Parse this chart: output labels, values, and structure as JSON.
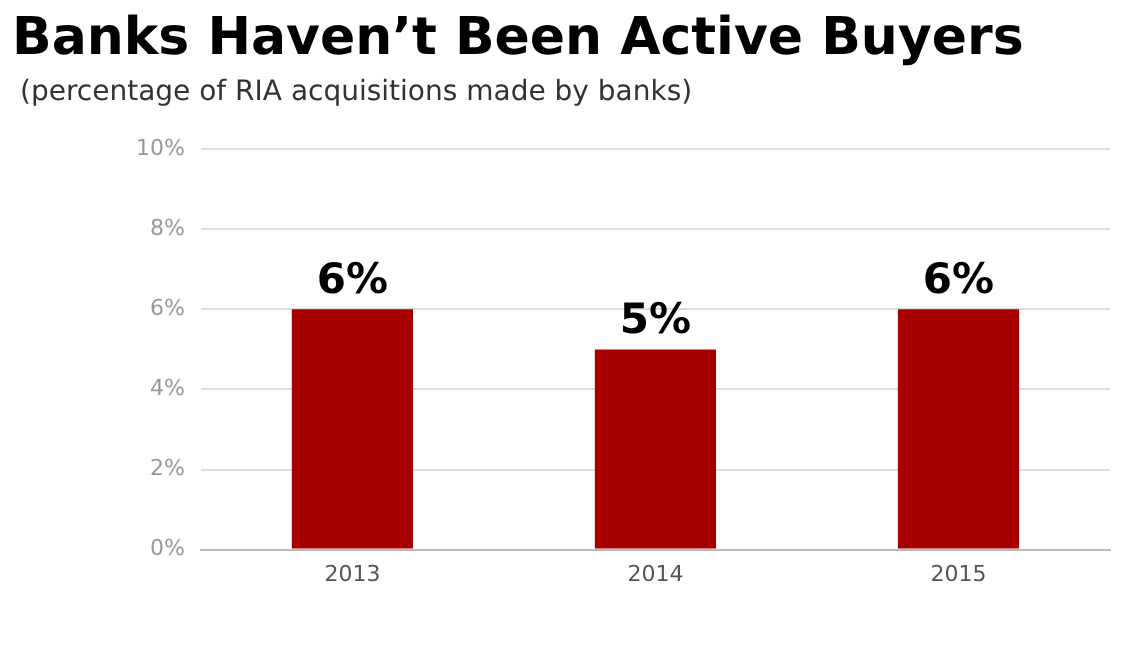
{
  "chart_data": {
    "type": "bar",
    "title": "Banks Haven’t Been Active Buyers",
    "subtitle": "(percentage of RIA acquisitions made by banks)",
    "categories": [
      "2013",
      "2014",
      "2015"
    ],
    "values": [
      6,
      5,
      6
    ],
    "color": "#a80000",
    "value_labels": [
      "6%",
      "5%",
      "6%"
    ],
    "ylim": [
      0,
      10
    ],
    "yticks": [
      {
        "value": 0,
        "label": "0%"
      },
      {
        "value": 2,
        "label": "2%"
      },
      {
        "value": 4,
        "label": "4%"
      },
      {
        "value": 6,
        "label": "6%"
      },
      {
        "value": 8,
        "label": "8%"
      },
      {
        "value": 10,
        "label": "10%"
      }
    ],
    "grid": "y",
    "legend": false
  }
}
